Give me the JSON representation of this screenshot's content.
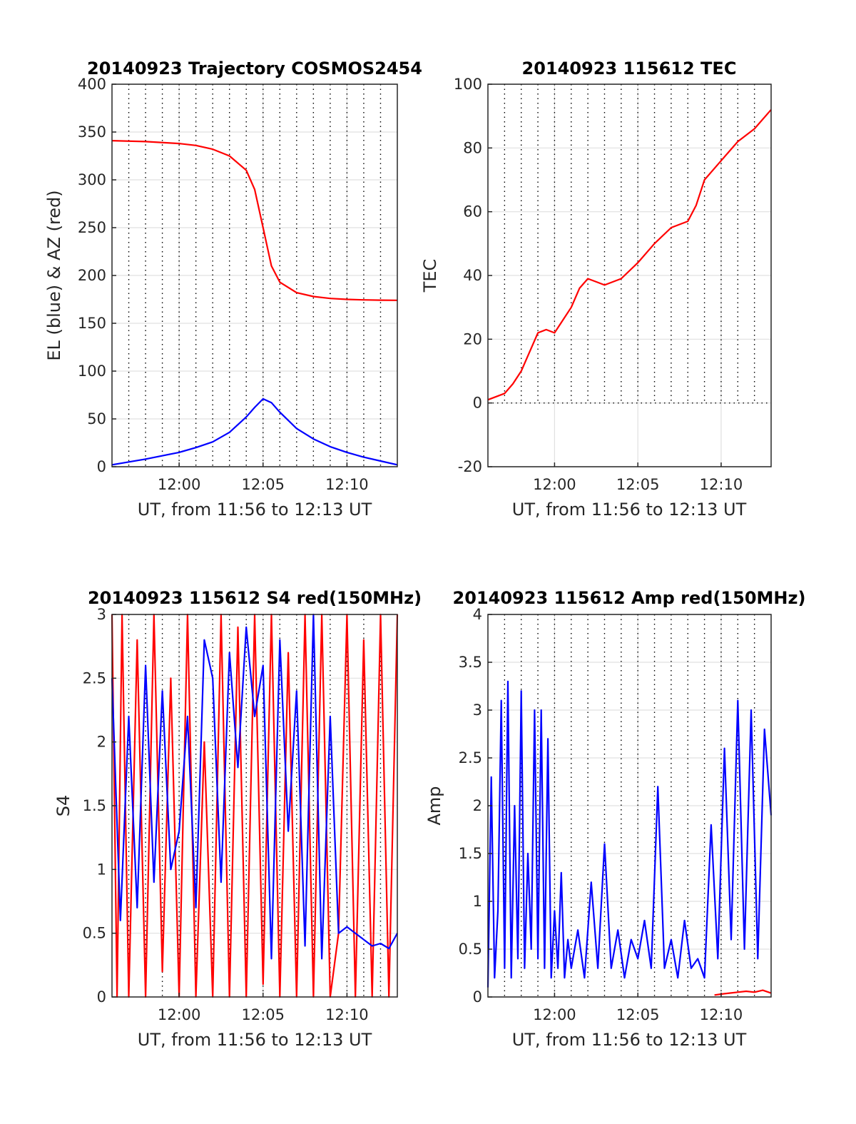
{
  "colors": {
    "red": "#ff0000",
    "blue": "#0000ff",
    "grid": "#e0e0e0",
    "axis": "#262626",
    "dotted": "#000000"
  },
  "chart_data": [
    {
      "id": "trajectory",
      "type": "line",
      "title": "20140923 Trajectory COSMOS2454",
      "xlabel": "UT, from 11:56 to 12:13 UT",
      "ylabel": "EL (blue) & AZ (red)",
      "xlim": [
        0,
        17
      ],
      "ylim": [
        0,
        400
      ],
      "xticks": [
        4,
        9,
        14
      ],
      "xtick_labels": [
        "12:00",
        "12:05",
        "12:10"
      ],
      "yticks": [
        0,
        50,
        100,
        150,
        200,
        250,
        300,
        350,
        400
      ],
      "ytick_labels": [
        "0",
        "50",
        "100",
        "150",
        "200",
        "250",
        "300",
        "350",
        "400"
      ],
      "grid": true,
      "series": [
        {
          "color": "red",
          "x": [
            0,
            2,
            4,
            5,
            6,
            7,
            8,
            8.5,
            9,
            9.5,
            10,
            11,
            12,
            13,
            14,
            15,
            16,
            17
          ],
          "values": [
            341,
            340,
            338,
            336,
            332,
            325,
            310,
            290,
            250,
            210,
            193,
            182,
            178,
            176,
            175,
            174.5,
            174.2,
            174
          ]
        },
        {
          "color": "blue",
          "x": [
            0,
            2,
            4,
            5,
            6,
            7,
            8,
            8.5,
            9,
            9.5,
            10,
            11,
            12,
            13,
            14,
            15,
            16,
            17
          ],
          "values": [
            2,
            8,
            15,
            20,
            26,
            36,
            52,
            62,
            71,
            67,
            57,
            40,
            29,
            21,
            15,
            10,
            6,
            2
          ]
        }
      ]
    },
    {
      "id": "tec",
      "type": "line",
      "title": "20140923 115612 TEC",
      "xlabel": "UT, from 11:56 to 12:13 UT",
      "ylabel": "TEC",
      "xlim": [
        0,
        17
      ],
      "ylim": [
        -20,
        100
      ],
      "xticks": [
        4,
        9,
        14
      ],
      "xtick_labels": [
        "12:00",
        "12:05",
        "12:10"
      ],
      "yticks": [
        -20,
        0,
        20,
        40,
        60,
        80,
        100
      ],
      "ytick_labels": [
        "-20",
        "0",
        "20",
        "40",
        "60",
        "80",
        "100"
      ],
      "grid": true,
      "series": [
        {
          "color": "red",
          "x": [
            0,
            1,
            1.5,
            2,
            3,
            3.5,
            4,
            4.5,
            5,
            5.5,
            6,
            6.5,
            7,
            8,
            9,
            10,
            11,
            11.5,
            12,
            12.5,
            13,
            14,
            15,
            16,
            17
          ],
          "values": [
            1,
            3,
            6,
            10,
            22,
            23,
            22,
            26,
            30,
            36,
            39,
            38,
            37,
            39,
            44,
            50,
            55,
            56,
            57,
            62,
            70,
            76,
            82,
            86,
            92
          ]
        }
      ]
    },
    {
      "id": "s4",
      "type": "line",
      "title": "20140923 115612 S4 red(150MHz)",
      "xlabel": "UT, from 11:56 to 12:13 UT",
      "ylabel": "S4",
      "xlim": [
        0,
        17
      ],
      "ylim": [
        0,
        3
      ],
      "xticks": [
        4,
        9,
        14
      ],
      "xtick_labels": [
        "12:00",
        "12:05",
        "12:10"
      ],
      "yticks": [
        0,
        0.5,
        1,
        1.5,
        2,
        2.5,
        3
      ],
      "ytick_labels": [
        "0",
        "0.5",
        "1",
        "1.5",
        "2",
        "2.5",
        "3"
      ],
      "grid": true,
      "series": [
        {
          "color": "red",
          "x": [
            0,
            0.3,
            0.6,
            1.0,
            1.5,
            2.0,
            2.5,
            3.0,
            3.5,
            4.0,
            4.5,
            5.0,
            5.5,
            6.0,
            6.5,
            7.0,
            7.5,
            8.0,
            8.5,
            9.0,
            9.5,
            10.0,
            10.5,
            11.0,
            11.5,
            12.0,
            12.5,
            13.0,
            13.5,
            14.0,
            14.5,
            15.0,
            15.5,
            16.0,
            16.5,
            17.0
          ],
          "values": [
            3,
            0,
            3,
            0,
            2.8,
            0,
            3,
            0.2,
            2.5,
            0,
            3,
            0,
            2.0,
            0,
            3,
            0,
            2.9,
            0,
            3,
            0.1,
            3,
            0,
            2.7,
            0,
            3,
            0,
            3,
            0,
            0.5,
            3,
            0,
            2.8,
            0,
            3,
            0,
            3
          ]
        },
        {
          "color": "blue",
          "x": [
            0,
            0.5,
            1.0,
            1.5,
            2.0,
            2.5,
            3.0,
            3.5,
            4.0,
            4.5,
            5.0,
            5.5,
            6.0,
            6.5,
            7.0,
            7.5,
            8.0,
            8.5,
            9.0,
            9.5,
            10.0,
            10.5,
            11.0,
            11.5,
            12.0,
            12.5,
            13.0,
            13.5,
            14.0,
            14.5,
            15.0,
            15.5,
            16.0,
            16.5,
            17.0
          ],
          "values": [
            2.5,
            0.6,
            2.2,
            0.7,
            2.6,
            0.9,
            2.4,
            1.0,
            1.3,
            2.2,
            0.7,
            2.8,
            2.5,
            0.9,
            2.7,
            1.8,
            2.9,
            2.2,
            2.6,
            0.3,
            2.8,
            1.3,
            2.4,
            0.4,
            3.0,
            0.3,
            2.2,
            0.5,
            0.55,
            0.5,
            0.45,
            0.4,
            0.42,
            0.38,
            0.5
          ]
        }
      ]
    },
    {
      "id": "amp",
      "type": "line",
      "title": "20140923 115612 Amp red(150MHz)",
      "xlabel": "UT, from 11:56 to 12:13 UT",
      "ylabel": "Amp",
      "xlim": [
        0,
        17
      ],
      "ylim": [
        0,
        4
      ],
      "xticks": [
        4,
        9,
        14
      ],
      "xtick_labels": [
        "12:00",
        "12:05",
        "12:10"
      ],
      "yticks": [
        0,
        0.5,
        1,
        1.5,
        2,
        2.5,
        3,
        3.5,
        4
      ],
      "ytick_labels": [
        "0",
        "0.5",
        "1",
        "1.5",
        "2",
        "2.5",
        "3",
        "3.5",
        "4"
      ],
      "grid": true,
      "series": [
        {
          "color": "blue",
          "x": [
            0,
            0.2,
            0.4,
            0.6,
            0.8,
            1.0,
            1.2,
            1.4,
            1.6,
            1.8,
            2.0,
            2.2,
            2.4,
            2.6,
            2.8,
            3.0,
            3.2,
            3.4,
            3.6,
            3.8,
            4.0,
            4.2,
            4.4,
            4.6,
            4.8,
            5.0,
            5.4,
            5.8,
            6.2,
            6.6,
            7.0,
            7.4,
            7.8,
            8.2,
            8.6,
            9.0,
            9.4,
            9.8,
            10.2,
            10.6,
            11.0,
            11.4,
            11.8,
            12.2,
            12.6,
            13.0,
            13.4,
            13.8,
            14.2,
            14.6,
            15.0,
            15.4,
            15.8,
            16.2,
            16.6,
            17.0
          ],
          "values": [
            0.1,
            2.3,
            0.2,
            0.9,
            3.1,
            0.3,
            3.3,
            0.2,
            2.0,
            0.4,
            3.2,
            0.3,
            1.5,
            0.5,
            3.0,
            0.4,
            3.0,
            0.3,
            2.7,
            0.2,
            0.9,
            0.3,
            1.3,
            0.2,
            0.6,
            0.3,
            0.7,
            0.2,
            1.2,
            0.3,
            1.6,
            0.3,
            0.7,
            0.2,
            0.6,
            0.4,
            0.8,
            0.3,
            2.2,
            0.3,
            0.6,
            0.2,
            0.8,
            0.3,
            0.4,
            0.2,
            1.8,
            0.4,
            2.6,
            0.6,
            3.1,
            0.5,
            3.0,
            0.4,
            2.8,
            1.9
          ]
        },
        {
          "color": "red",
          "x": [
            13.6,
            14.0,
            14.5,
            15.0,
            15.5,
            16.0,
            16.5,
            17.0
          ],
          "values": [
            0.02,
            0.03,
            0.04,
            0.05,
            0.06,
            0.05,
            0.07,
            0.04
          ]
        }
      ]
    }
  ]
}
